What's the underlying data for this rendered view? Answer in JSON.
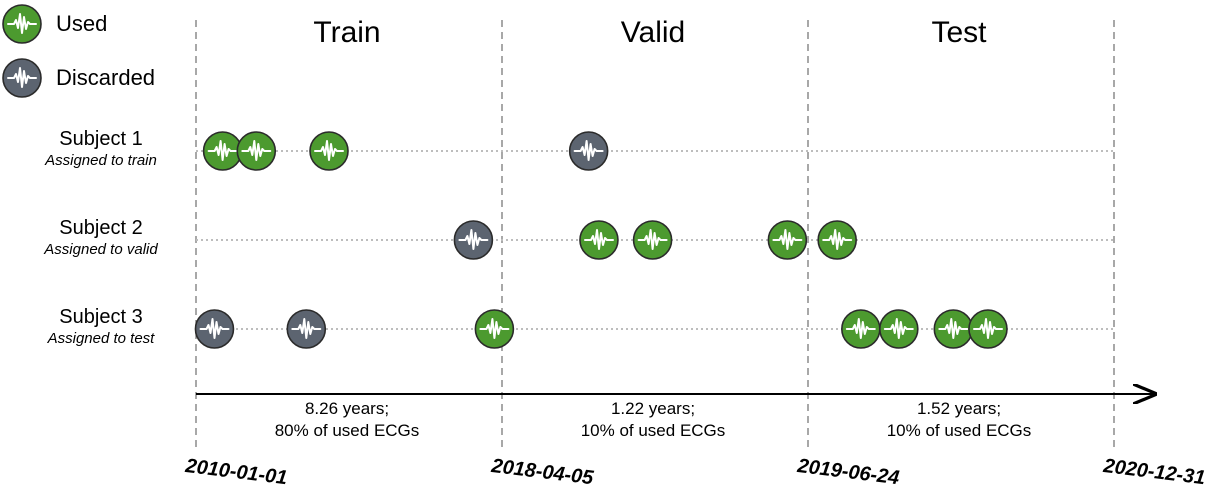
{
  "legend": {
    "used": {
      "label": "Used",
      "color": "#4c9a2f",
      "icon": "ecg-icon"
    },
    "discarded": {
      "label": "Discarded",
      "color": "#5c6470",
      "icon": "ecg-icon"
    }
  },
  "splits": [
    {
      "title": "Train",
      "years": "8.26 years;",
      "share": "80% of used ECGs"
    },
    {
      "title": "Valid",
      "years": "1.22 years;",
      "share": "10% of used ECGs"
    },
    {
      "title": "Test",
      "years": "1.52 years;",
      "share": "10% of used ECGs"
    }
  ],
  "dates": [
    "2010-01-01",
    "2018-04-05",
    "2019-06-24",
    "2020-12-31"
  ],
  "subjects": [
    {
      "name": "Subject 1",
      "assignment": "Assigned to train",
      "ecgs": [
        {
          "date": "2010-09-20",
          "status": "used"
        },
        {
          "date": "2011-08-18",
          "status": "used"
        },
        {
          "date": "2013-08-04",
          "status": "used"
        },
        {
          "date": "2018-08-09",
          "status": "discarded"
        }
      ]
    },
    {
      "name": "Subject 2",
      "assignment": "Assigned to valid",
      "ecgs": [
        {
          "date": "2017-06-27",
          "status": "discarded"
        },
        {
          "date": "2018-08-24",
          "status": "used"
        },
        {
          "date": "2018-11-10",
          "status": "used"
        },
        {
          "date": "2019-05-25",
          "status": "used"
        },
        {
          "date": "2019-08-16",
          "status": "used"
        }
      ]
    },
    {
      "name": "Subject 3",
      "assignment": "Assigned to test",
      "ecgs": [
        {
          "date": "2010-07-02",
          "status": "discarded"
        },
        {
          "date": "2012-12-23",
          "status": "discarded"
        },
        {
          "date": "2018-01-20",
          "status": "used"
        },
        {
          "date": "2019-09-28",
          "status": "used"
        },
        {
          "date": "2019-12-06",
          "status": "used"
        },
        {
          "date": "2020-03-14",
          "status": "used"
        },
        {
          "date": "2020-05-16",
          "status": "used"
        }
      ]
    }
  ],
  "colors": {
    "boundary": "#7a7a7a",
    "row_line": "#bdbdbd",
    "axis": "#000000",
    "ecg_trace": "#ffffff"
  }
}
